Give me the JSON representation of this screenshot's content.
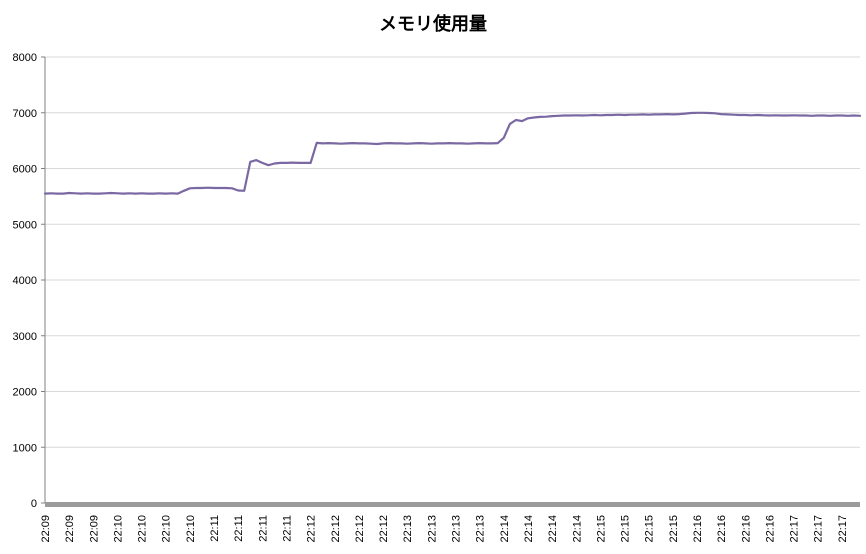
{
  "chart_data": {
    "type": "line",
    "title": "メモリ使用量",
    "ylabel": "",
    "xlabel": "",
    "ylim": [
      0,
      8000
    ],
    "y_ticks": [
      0,
      1000,
      2000,
      3000,
      4000,
      5000,
      6000,
      7000,
      8000
    ],
    "grid": true,
    "legend": "none",
    "label_every": 4,
    "x_labels": [
      "22:09",
      "22:09",
      "22:09",
      "22:10",
      "22:10",
      "22:10",
      "22:10",
      "22:11",
      "22:11",
      "22:11",
      "22:11",
      "22:12",
      "22:12",
      "22:12",
      "22:12",
      "22:13",
      "22:13",
      "22:13",
      "22:13",
      "22:14",
      "22:14",
      "22:14",
      "22:14",
      "22:15",
      "22:15",
      "22:15",
      "22:15",
      "22:16",
      "22:16",
      "22:16",
      "22:16",
      "22:17",
      "22:17",
      "22:17"
    ],
    "series": [
      {
        "name": "メモリ使用量",
        "color": "#7A68A2",
        "values": [
          5550,
          5555,
          5550,
          5550,
          5560,
          5555,
          5550,
          5555,
          5550,
          5550,
          5555,
          5560,
          5555,
          5550,
          5555,
          5550,
          5555,
          5550,
          5550,
          5555,
          5550,
          5555,
          5550,
          5600,
          5645,
          5650,
          5650,
          5655,
          5650,
          5650,
          5650,
          5645,
          5605,
          5600,
          6120,
          6150,
          6100,
          6060,
          6090,
          6100,
          6100,
          6105,
          6100,
          6100,
          6100,
          6460,
          6450,
          6455,
          6450,
          6445,
          6450,
          6455,
          6450,
          6450,
          6445,
          6440,
          6450,
          6455,
          6450,
          6450,
          6445,
          6450,
          6455,
          6450,
          6445,
          6450,
          6450,
          6455,
          6450,
          6450,
          6445,
          6450,
          6455,
          6450,
          6450,
          6455,
          6550,
          6800,
          6870,
          6850,
          6900,
          6915,
          6925,
          6930,
          6940,
          6945,
          6950,
          6950,
          6955,
          6950,
          6955,
          6960,
          6955,
          6960,
          6960,
          6965,
          6960,
          6965,
          6965,
          6970,
          6965,
          6970,
          6970,
          6975,
          6970,
          6975,
          6985,
          6995,
          7000,
          7000,
          6995,
          6990,
          6975,
          6970,
          6965,
          6960,
          6960,
          6955,
          6960,
          6955,
          6950,
          6955,
          6950,
          6950,
          6955,
          6950,
          6950,
          6945,
          6950,
          6950,
          6945,
          6950,
          6950,
          6945,
          6950,
          6945
        ]
      }
    ],
    "colors": {
      "background": "#FFFFFF",
      "gridline": "#D9D9D9",
      "y_axis": "#808080",
      "x_axis_band": "#9B9B9B",
      "tick_text": "#000000"
    }
  }
}
